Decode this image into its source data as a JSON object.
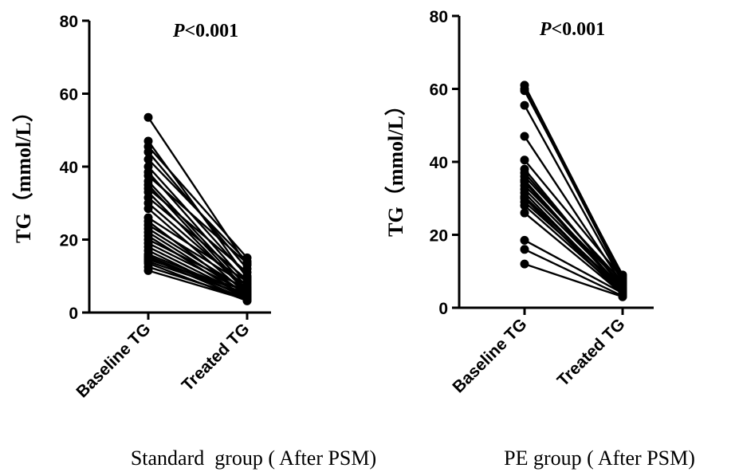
{
  "chart_data": [
    {
      "type": "line",
      "title": "",
      "annotation": "P<0.001",
      "group_label": "Standard  group ( After PSM)",
      "ylabel": "TG（mmol/L）",
      "xlabel": "",
      "categories": [
        "Baseline TG",
        "Treated TG"
      ],
      "ylim": [
        0,
        80
      ],
      "yticks": [
        0,
        20,
        40,
        60,
        80
      ],
      "grid": false,
      "pairs": [
        [
          53.5,
          13.0
        ],
        [
          47.0,
          9.5
        ],
        [
          45.5,
          15.0
        ],
        [
          44.0,
          12.0
        ],
        [
          42.0,
          14.0
        ],
        [
          40.0,
          10.0
        ],
        [
          38.5,
          8.0
        ],
        [
          37.5,
          13.5
        ],
        [
          36.0,
          7.0
        ],
        [
          35.0,
          6.0
        ],
        [
          34.0,
          11.0
        ],
        [
          33.0,
          5.5
        ],
        [
          31.5,
          9.0
        ],
        [
          30.0,
          6.5
        ],
        [
          28.5,
          5.0
        ],
        [
          26.0,
          8.5
        ],
        [
          25.0,
          4.5
        ],
        [
          24.0,
          7.5
        ],
        [
          23.0,
          6.0
        ],
        [
          22.0,
          5.0
        ],
        [
          21.0,
          4.0
        ],
        [
          20.0,
          6.5
        ],
        [
          19.0,
          5.5
        ],
        [
          18.0,
          4.5
        ],
        [
          17.0,
          3.8
        ],
        [
          16.0,
          5.0
        ],
        [
          15.5,
          4.2
        ],
        [
          15.0,
          3.5
        ],
        [
          14.5,
          6.0
        ],
        [
          14.0,
          4.8
        ],
        [
          13.5,
          3.2
        ],
        [
          12.5,
          4.0
        ],
        [
          11.5,
          3.5
        ]
      ]
    },
    {
      "type": "line",
      "title": "",
      "annotation": "P<0.001",
      "group_label": "PE group ( After PSM)",
      "ylabel": "TG（mmol/L）",
      "xlabel": "",
      "categories": [
        "Baseline TG",
        "Treated TG"
      ],
      "ylim": [
        0,
        80
      ],
      "yticks": [
        0,
        20,
        40,
        60,
        80
      ],
      "grid": false,
      "pairs": [
        [
          61.0,
          8.5
        ],
        [
          60.0,
          7.5
        ],
        [
          59.5,
          9.0
        ],
        [
          55.5,
          7.0
        ],
        [
          47.0,
          6.5
        ],
        [
          40.5,
          8.0
        ],
        [
          38.0,
          5.5
        ],
        [
          37.0,
          6.0
        ],
        [
          36.0,
          7.0
        ],
        [
          35.0,
          5.0
        ],
        [
          34.5,
          4.5
        ],
        [
          33.5,
          6.5
        ],
        [
          32.5,
          5.5
        ],
        [
          31.5,
          4.0
        ],
        [
          30.5,
          4.8
        ],
        [
          30.0,
          3.5
        ],
        [
          29.0,
          5.2
        ],
        [
          28.0,
          4.2
        ],
        [
          26.0,
          3.8
        ],
        [
          18.5,
          4.0
        ],
        [
          16.0,
          3.2
        ],
        [
          12.0,
          3.0
        ]
      ]
    }
  ]
}
